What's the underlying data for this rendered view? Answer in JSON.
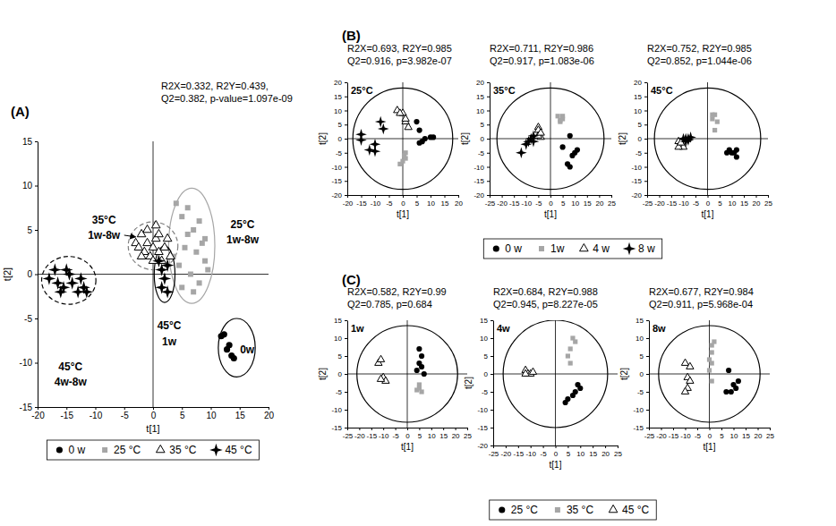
{
  "chart_data": [
    {
      "type": "scatter",
      "title": "(A)",
      "subtitle": [
        "R2X=0.332, R2Y=0.439,",
        "Q2=0.382, p-value=1.097e-09"
      ],
      "x_label": "t[1]",
      "y_label": "t[2]",
      "xlim": [
        -20,
        20
      ],
      "xticks": [
        -20,
        -15,
        -10,
        -5,
        0,
        5,
        10,
        15,
        20
      ],
      "ylim": [
        -15,
        15
      ],
      "yticks": [
        -15,
        -10,
        -5,
        0,
        5,
        10,
        15
      ],
      "legend": "bottom",
      "series": [
        {
          "name": "0 w",
          "color": "#000000",
          "marker": "circle",
          "x": [
            11.8,
            12.3,
            12.8,
            13.2,
            13.6,
            14.0
          ],
          "values": [
            -7.0,
            -6.8,
            -8.5,
            -8.0,
            -9.2,
            -9.5
          ]
        },
        {
          "name": "25 °C",
          "color": "#a6a6a6",
          "marker": "square",
          "x": [
            4,
            5,
            6,
            7,
            8,
            9,
            5.5,
            7.5,
            9,
            4.5,
            6.5,
            8,
            5,
            7,
            6,
            8.5,
            3.5,
            9.5
          ],
          "values": [
            8,
            6.5,
            7.5,
            5,
            6,
            4,
            3,
            2.5,
            1.5,
            1,
            0,
            -1,
            -1.5,
            -2,
            4.5,
            3.5,
            2,
            0.5
          ]
        },
        {
          "name": "35 °C",
          "color": "#000000",
          "marker": "triangle-open",
          "x": [
            -3,
            -2.5,
            -2,
            -1.5,
            -1,
            -0.5,
            0,
            0.5,
            1,
            1.5,
            2,
            2.5,
            -1,
            0,
            1,
            3,
            -2,
            0.5
          ],
          "values": [
            3.5,
            3,
            4.5,
            2.5,
            3.5,
            2,
            3,
            4,
            2.5,
            1.5,
            3,
            4,
            5,
            1.5,
            4.5,
            2,
            2,
            5.5
          ]
        },
        {
          "name": "45 °C",
          "color": "#000000",
          "marker": "star",
          "x": [
            1,
            1.5,
            2,
            1.5,
            2.5,
            2.5,
            -18,
            -17,
            -16.5,
            -15.5,
            -14.5,
            -14,
            -13,
            -12.5,
            -12,
            -11.5,
            -16,
            -15
          ],
          "values": [
            1.5,
            0.5,
            -0.5,
            -1.5,
            -2,
            1,
            -0.5,
            0.5,
            -1,
            -1.5,
            0,
            -1,
            -2,
            -0.5,
            -1.5,
            -2,
            -2,
            0.5
          ]
        }
      ],
      "ellipses": [
        {
          "cx": 14.5,
          "cy": -8.3,
          "rx": 3.2,
          "ry": 3.3,
          "color": "#000000",
          "line_style": "solid"
        },
        {
          "cx": 6.7,
          "cy": 3.2,
          "rx": 4.0,
          "ry": 6.5,
          "color": "#a6a6a6",
          "line_style": "solid"
        },
        {
          "cx": 0,
          "cy": 3.2,
          "rx": 4.3,
          "ry": 2.7,
          "color": "#7f7f7f",
          "line_style": "dashed"
        },
        {
          "cx": 2,
          "cy": 0,
          "rx": 1.8,
          "ry": 3.2,
          "color": "#000000",
          "line_style": "solid"
        },
        {
          "cx": -14.6,
          "cy": -0.7,
          "rx": 4.7,
          "ry": 2.7,
          "color": "#000000",
          "line_style": "dashed"
        }
      ],
      "annotations": [
        {
          "text": "35°C",
          "x": -8.5,
          "y": 6.1
        },
        {
          "text": "1w-8w",
          "x": -8.5,
          "y": 4.4
        },
        {
          "text": "25°C",
          "x": 15.5,
          "y": 5.6
        },
        {
          "text": "1w-8w",
          "x": 15.5,
          "y": 3.9
        },
        {
          "text": "45°C",
          "x": 2.8,
          "y": -5.8
        },
        {
          "text": "1w",
          "x": 2.8,
          "y": -7.6
        },
        {
          "text": "45°C",
          "x": -14.3,
          "y": -10.5
        },
        {
          "text": "4w-8w",
          "x": -14.3,
          "y": -12.2
        },
        {
          "text": "0w",
          "x": 16.3,
          "y": -8.5
        }
      ],
      "arrows": [
        {
          "x1": -5.0,
          "y1": 4.4,
          "x2": -3.0,
          "y2": 4.2
        }
      ]
    },
    {
      "type": "scatter",
      "title": "(B)",
      "subtitle": [
        "R2X=0.693, R2Y=0.985",
        "Q2=0.916, p=3.982e-07"
      ],
      "x_label": "t[1]",
      "y_label": "t[2]",
      "xlim": [
        -20,
        20
      ],
      "xticks": [
        -20,
        -15,
        -10,
        -5,
        0,
        5,
        10,
        15,
        20
      ],
      "ylim": [
        -20,
        20
      ],
      "yticks": [
        -20,
        -15,
        -10,
        -5,
        0,
        5,
        10,
        15,
        20
      ],
      "legend": "bottom",
      "annotations": [
        {
          "text": "25°C"
        }
      ],
      "ellipses": [
        {
          "cx": 0,
          "cy": 0,
          "rx": 18,
          "ry": 18,
          "color": "#000000",
          "line_style": "solid"
        }
      ],
      "series": [
        {
          "name": "0 w",
          "color": "#000000",
          "marker": "circle",
          "x": [
            5,
            6,
            7,
            8,
            10,
            11,
            6
          ],
          "values": [
            6,
            3,
            -1,
            0,
            0.5,
            0.5,
            -1.5
          ]
        },
        {
          "name": "1w",
          "color": "#a6a6a6",
          "marker": "square",
          "x": [
            0,
            1,
            -1,
            1,
            0.5
          ],
          "values": [
            -8,
            -7,
            -9,
            -5,
            -6
          ]
        },
        {
          "name": "4 w",
          "color": "#000000",
          "marker": "triangle-open",
          "x": [
            -2,
            0,
            1,
            2,
            1,
            -1
          ],
          "values": [
            10,
            9,
            6,
            4,
            7,
            9
          ]
        },
        {
          "name": "8 w",
          "color": "#000000",
          "marker": "star",
          "x": [
            -15,
            -15,
            -12,
            -10,
            -10,
            -8,
            -7
          ],
          "values": [
            1.5,
            -0.5,
            -4,
            -4.5,
            -2,
            6,
            3.5
          ]
        }
      ]
    },
    {
      "type": "scatter",
      "subtitle": [
        "R2X=0.711, R2Y=0.986",
        "Q2=0.917, p=1.083e-06"
      ],
      "x_label": "t[1]",
      "y_label": "t[2]",
      "xlim": [
        -25,
        25
      ],
      "xticks": [
        -25,
        -20,
        -15,
        -10,
        -5,
        0,
        5,
        10,
        15,
        20,
        25
      ],
      "ylim": [
        -20,
        20
      ],
      "yticks": [
        -20,
        -15,
        -10,
        -5,
        0,
        5,
        10,
        15,
        20
      ],
      "annotations": [
        {
          "text": "35°C"
        }
      ],
      "ellipses": [
        {
          "cx": 0,
          "cy": 0,
          "rx": 22,
          "ry": 18,
          "color": "#000000",
          "line_style": "solid"
        }
      ],
      "series": [
        {
          "name": "0 w",
          "color": "#000000",
          "marker": "circle",
          "x": [
            5,
            7,
            8,
            9,
            10,
            11,
            8
          ],
          "values": [
            -3,
            -9,
            -10,
            -6,
            -5,
            -4,
            1
          ]
        },
        {
          "name": "1w",
          "color": "#a6a6a6",
          "marker": "square",
          "x": [
            3,
            4,
            5,
            4,
            5
          ],
          "values": [
            8,
            6.5,
            8,
            6,
            7
          ]
        },
        {
          "name": "4 w",
          "color": "#000000",
          "marker": "triangle-open",
          "x": [
            -5,
            -5,
            -4,
            -5,
            -4
          ],
          "values": [
            4,
            3,
            0.5,
            1,
            2
          ]
        },
        {
          "name": "8 w",
          "color": "#000000",
          "marker": "star",
          "x": [
            -12,
            -10,
            -9,
            -8,
            -7,
            -7
          ],
          "values": [
            -5,
            -2,
            -1,
            0,
            -1,
            1
          ]
        }
      ]
    },
    {
      "type": "scatter",
      "subtitle": [
        "R2X=0.752, R2Y=0.985",
        "Q2=0.852, p=1.044e-06"
      ],
      "x_label": "t[1]",
      "y_label": "t[2]",
      "xlim": [
        -25,
        25
      ],
      "xticks": [
        -25,
        -20,
        -15,
        -10,
        -5,
        0,
        5,
        10,
        15,
        20,
        25
      ],
      "ylim": [
        -20,
        20
      ],
      "yticks": [
        -20,
        -15,
        -10,
        -5,
        0,
        5,
        10,
        15,
        20
      ],
      "annotations": [
        {
          "text": "45°C"
        }
      ],
      "ellipses": [
        {
          "cx": 0,
          "cy": 0,
          "rx": 22,
          "ry": 18,
          "color": "#000000",
          "line_style": "solid"
        }
      ],
      "series": [
        {
          "name": "0 w",
          "color": "#000000",
          "marker": "circle",
          "x": [
            8,
            9,
            10,
            11,
            12,
            12
          ],
          "values": [
            -5,
            -4,
            -5,
            -5,
            -6.5,
            -4
          ]
        },
        {
          "name": "1w",
          "color": "#a6a6a6",
          "marker": "square",
          "x": [
            2,
            3,
            4,
            3,
            2
          ],
          "values": [
            8.5,
            8.5,
            6,
            3,
            7
          ]
        },
        {
          "name": "4 w",
          "color": "#000000",
          "marker": "triangle-open",
          "x": [
            -12,
            -11,
            -10,
            -12,
            -11
          ],
          "values": [
            -1,
            -2.5,
            -3,
            -3,
            -1.5
          ]
        },
        {
          "name": "8 w",
          "color": "#000000",
          "marker": "star",
          "x": [
            -10,
            -9,
            -8,
            -7,
            -9,
            -8
          ],
          "values": [
            0,
            0,
            0,
            0.5,
            -1,
            -0.5
          ]
        }
      ]
    },
    {
      "type": "scatter",
      "title": "(C)",
      "subtitle": [
        "R2X=0.582, R2Y=0.99",
        "Q2=0.785, p=0.684"
      ],
      "x_label": "t[1]",
      "y_label": "t[2]",
      "xlim": [
        -25,
        25
      ],
      "xticks": [
        -25,
        -20,
        -15,
        -10,
        -5,
        0,
        5,
        10,
        15,
        20,
        25
      ],
      "ylim": [
        -15,
        15
      ],
      "yticks": [
        -15,
        -10,
        -5,
        0,
        5,
        10,
        15
      ],
      "legend": "bottom",
      "annotations": [
        {
          "text": "1w"
        }
      ],
      "ellipses": [
        {
          "cx": 0,
          "cy": 0,
          "rx": 21,
          "ry": 13.5,
          "color": "#000000",
          "line_style": "solid"
        }
      ],
      "series": [
        {
          "name": "25 °C",
          "color": "#000000",
          "marker": "circle",
          "x": [
            5,
            6,
            5,
            4,
            7,
            6
          ],
          "values": [
            7,
            5,
            3,
            1,
            0,
            2
          ]
        },
        {
          "name": "35 °C",
          "color": "#a6a6a6",
          "marker": "square",
          "x": [
            5,
            6,
            5,
            4
          ],
          "values": [
            -3,
            -5,
            -4,
            -4.5
          ]
        },
        {
          "name": "45 °C",
          "color": "#000000",
          "marker": "triangle-open",
          "x": [
            -12,
            -11,
            -10,
            -9,
            -11
          ],
          "values": [
            3,
            4,
            -1,
            -2,
            -1.5
          ]
        }
      ]
    },
    {
      "type": "scatter",
      "subtitle": [
        "R2X=0.684, R2Y=0.988",
        "Q2=0.945, p=8.227e-05"
      ],
      "x_label": "t[1]",
      "y_label": "t[2]",
      "xlim": [
        -25,
        25
      ],
      "xticks": [
        -25,
        -20,
        -15,
        -10,
        -5,
        0,
        5,
        10,
        15,
        20,
        25
      ],
      "ylim": [
        -20,
        15
      ],
      "yticks": [
        -20,
        -15,
        -10,
        -5,
        0,
        5,
        10,
        15
      ],
      "annotations": [
        {
          "text": "4w"
        }
      ],
      "ellipses": [
        {
          "cx": 0,
          "cy": 0,
          "rx": 21,
          "ry": 15,
          "color": "#000000",
          "line_style": "solid"
        }
      ],
      "series": [
        {
          "name": "25 °C",
          "color": "#000000",
          "marker": "circle",
          "x": [
            9,
            8,
            5,
            4,
            7,
            10
          ],
          "values": [
            -3,
            -5,
            -7,
            -8,
            -6,
            -4
          ]
        },
        {
          "name": "35 °C",
          "color": "#a6a6a6",
          "marker": "square",
          "x": [
            7,
            8,
            6,
            5,
            6
          ],
          "values": [
            10,
            9,
            7,
            5,
            3
          ]
        },
        {
          "name": "45 °C",
          "color": "#000000",
          "marker": "triangle-open",
          "x": [
            -12,
            -11,
            -10,
            -9,
            -12
          ],
          "values": [
            1,
            0,
            0,
            0.5,
            0
          ]
        }
      ]
    },
    {
      "type": "scatter",
      "subtitle": [
        "R2X=0.677, R2Y=0.984",
        "Q2=0.911, p=5.968e-04"
      ],
      "x_label": "t[1]",
      "y_label": "t[2]",
      "xlim": [
        -25,
        25
      ],
      "xticks": [
        -25,
        -20,
        -15,
        -10,
        -5,
        0,
        5,
        10,
        15,
        20,
        25
      ],
      "ylim": [
        -15,
        15
      ],
      "yticks": [
        -15,
        -10,
        -5,
        0,
        5,
        10,
        15
      ],
      "annotations": [
        {
          "text": "8w"
        }
      ],
      "ellipses": [
        {
          "cx": 0,
          "cy": 0,
          "rx": 21,
          "ry": 13.5,
          "color": "#000000",
          "line_style": "solid"
        }
      ],
      "series": [
        {
          "name": "25 °C",
          "color": "#000000",
          "marker": "circle",
          "x": [
            8,
            7,
            9,
            10,
            12,
            11
          ],
          "values": [
            1,
            -5,
            -5,
            -3,
            -2,
            -4
          ]
        },
        {
          "name": "35 °C",
          "color": "#a6a6a6",
          "marker": "square",
          "x": [
            1,
            2,
            1,
            0,
            1,
            0,
            1
          ],
          "values": [
            8,
            9,
            6,
            4,
            3,
            1,
            -2
          ]
        },
        {
          "name": "45 °C",
          "color": "#000000",
          "marker": "triangle-open",
          "x": [
            -10,
            -8,
            -9,
            -8,
            -9,
            -10
          ],
          "values": [
            3,
            2,
            -1,
            -2,
            -4,
            -5
          ]
        }
      ]
    }
  ]
}
